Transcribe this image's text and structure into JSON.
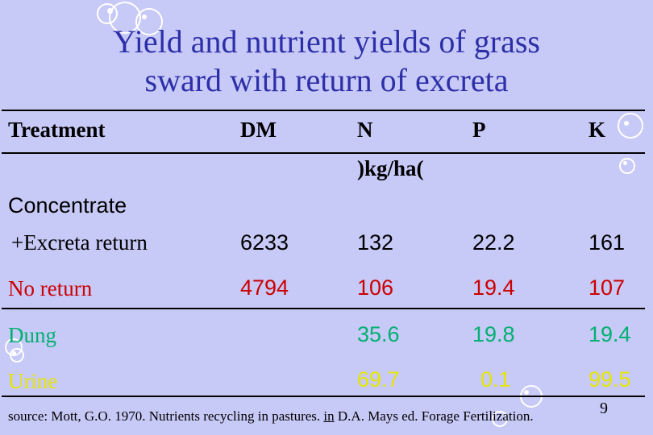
{
  "title_line1": "Yield and nutrient yields of grass",
  "title_line2": "sward with return of excreta",
  "headers": {
    "treatment": "Treatment",
    "dm": "DM",
    "n": "N",
    "unit": ")kg/ha(",
    "p": "P",
    "k": "K"
  },
  "rows": [
    {
      "label1": "Concentrate",
      "label2": "+Excreta return",
      "dm": "6233",
      "n": "132",
      "p": "22.2",
      "k": "161",
      "color": "#000000"
    },
    {
      "label": "No return",
      "dm": "4794",
      "n": "106",
      "p": "19.4",
      "k": "107",
      "color": "#cc0000"
    },
    {
      "label": "Dung",
      "dm": "",
      "n": "35.6",
      "p": "19.8",
      "k": "19.4",
      "color": "#00b070"
    },
    {
      "label": "Urine",
      "dm": "",
      "n": "69.7",
      "p": "0.1",
      "k": "99.5",
      "color": "#e6e600"
    }
  ],
  "source": {
    "prefix": "source: Mott, G.O. 1970. Nutrients recycling in pastures. ",
    "in": "in",
    "suffix": " D.A. Mays ed. Forage Fertilization."
  },
  "slide_number": "9",
  "colors": {
    "background": "#c7c9f7",
    "title": "#2d2fa8"
  }
}
